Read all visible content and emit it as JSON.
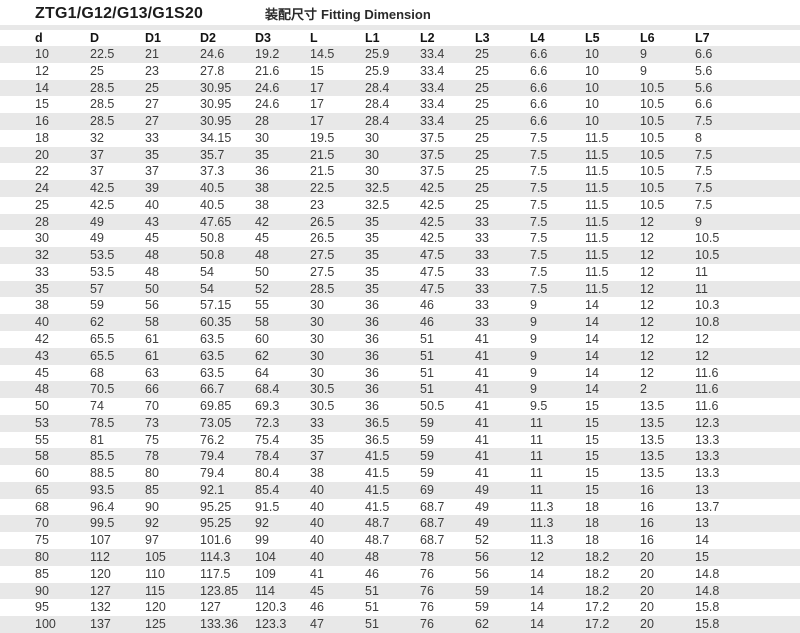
{
  "header": {
    "title": "ZTG1/G12/G13/G1S20",
    "subtitle_cn": "装配尺寸",
    "subtitle_en": "Fitting Dimension"
  },
  "colors": {
    "stripe": "#e8e8e8",
    "text": "#3d3d3d",
    "header_text": "#141414",
    "background": "#ffffff"
  },
  "table": {
    "columns": [
      "d",
      "D",
      "D1",
      "D2",
      "D3",
      "L",
      "L1",
      "L2",
      "L3",
      "L4",
      "L5",
      "L6",
      "L7"
    ],
    "rows": [
      [
        "10",
        "22.5",
        "21",
        "24.6",
        "19.2",
        "14.5",
        "25.9",
        "33.4",
        "25",
        "6.6",
        "10",
        "9",
        "6.6"
      ],
      [
        "12",
        "25",
        "23",
        "27.8",
        "21.6",
        "15",
        "25.9",
        "33.4",
        "25",
        "6.6",
        "10",
        "9",
        "5.6"
      ],
      [
        "14",
        "28.5",
        "25",
        "30.95",
        "24.6",
        "17",
        "28.4",
        "33.4",
        "25",
        "6.6",
        "10",
        "10.5",
        "5.6"
      ],
      [
        "15",
        "28.5",
        "27",
        "30.95",
        "24.6",
        "17",
        "28.4",
        "33.4",
        "25",
        "6.6",
        "10",
        "10.5",
        "6.6"
      ],
      [
        "16",
        "28.5",
        "27",
        "30.95",
        "28",
        "17",
        "28.4",
        "33.4",
        "25",
        "6.6",
        "10",
        "10.5",
        "7.5"
      ],
      [
        "18",
        "32",
        "33",
        "34.15",
        "30",
        "19.5",
        "30",
        "37.5",
        "25",
        "7.5",
        "11.5",
        "10.5",
        "8"
      ],
      [
        "20",
        "37",
        "35",
        "35.7",
        "35",
        "21.5",
        "30",
        "37.5",
        "25",
        "7.5",
        "11.5",
        "10.5",
        "7.5"
      ],
      [
        "22",
        "37",
        "37",
        "37.3",
        "36",
        "21.5",
        "30",
        "37.5",
        "25",
        "7.5",
        "11.5",
        "10.5",
        "7.5"
      ],
      [
        "24",
        "42.5",
        "39",
        "40.5",
        "38",
        "22.5",
        "32.5",
        "42.5",
        "25",
        "7.5",
        "11.5",
        "10.5",
        "7.5"
      ],
      [
        "25",
        "42.5",
        "40",
        "40.5",
        "38",
        "23",
        "32.5",
        "42.5",
        "25",
        "7.5",
        "11.5",
        "10.5",
        "7.5"
      ],
      [
        "28",
        "49",
        "43",
        "47.65",
        "42",
        "26.5",
        "35",
        "42.5",
        "33",
        "7.5",
        "11.5",
        "12",
        "9"
      ],
      [
        "30",
        "49",
        "45",
        "50.8",
        "45",
        "26.5",
        "35",
        "42.5",
        "33",
        "7.5",
        "11.5",
        "12",
        "10.5"
      ],
      [
        "32",
        "53.5",
        "48",
        "50.8",
        "48",
        "27.5",
        "35",
        "47.5",
        "33",
        "7.5",
        "11.5",
        "12",
        "10.5"
      ],
      [
        "33",
        "53.5",
        "48",
        "54",
        "50",
        "27.5",
        "35",
        "47.5",
        "33",
        "7.5",
        "11.5",
        "12",
        "11"
      ],
      [
        "35",
        "57",
        "50",
        "54",
        "52",
        "28.5",
        "35",
        "47.5",
        "33",
        "7.5",
        "11.5",
        "12",
        "11"
      ],
      [
        "38",
        "59",
        "56",
        "57.15",
        "55",
        "30",
        "36",
        "46",
        "33",
        "9",
        "14",
        "12",
        "10.3"
      ],
      [
        "40",
        "62",
        "58",
        "60.35",
        "58",
        "30",
        "36",
        "46",
        "33",
        "9",
        "14",
        "12",
        "10.8"
      ],
      [
        "42",
        "65.5",
        "61",
        "63.5",
        "60",
        "30",
        "36",
        "51",
        "41",
        "9",
        "14",
        "12",
        "12"
      ],
      [
        "43",
        "65.5",
        "61",
        "63.5",
        "62",
        "30",
        "36",
        "51",
        "41",
        "9",
        "14",
        "12",
        "12"
      ],
      [
        "45",
        "68",
        "63",
        "63.5",
        "64",
        "30",
        "36",
        "51",
        "41",
        "9",
        "14",
        "12",
        "11.6"
      ],
      [
        "48",
        "70.5",
        "66",
        "66.7",
        "68.4",
        "30.5",
        "36",
        "51",
        "41",
        "9",
        "14",
        "2",
        "11.6"
      ],
      [
        "50",
        "74",
        "70",
        "69.85",
        "69.3",
        "30.5",
        "36",
        "50.5",
        "41",
        "9.5",
        "15",
        "13.5",
        "11.6"
      ],
      [
        "53",
        "78.5",
        "73",
        "73.05",
        "72.3",
        "33",
        "36.5",
        "59",
        "41",
        "11",
        "15",
        "13.5",
        "12.3"
      ],
      [
        "55",
        "81",
        "75",
        "76.2",
        "75.4",
        "35",
        "36.5",
        "59",
        "41",
        "11",
        "15",
        "13.5",
        "13.3"
      ],
      [
        "58",
        "85.5",
        "78",
        "79.4",
        "78.4",
        "37",
        "41.5",
        "59",
        "41",
        "11",
        "15",
        "13.5",
        "13.3"
      ],
      [
        "60",
        "88.5",
        "80",
        "79.4",
        "80.4",
        "38",
        "41.5",
        "59",
        "41",
        "11",
        "15",
        "13.5",
        "13.3"
      ],
      [
        "65",
        "93.5",
        "85",
        "92.1",
        "85.4",
        "40",
        "41.5",
        "69",
        "49",
        "11",
        "15",
        "16",
        "13"
      ],
      [
        "68",
        "96.4",
        "90",
        "95.25",
        "91.5",
        "40",
        "41.5",
        "68.7",
        "49",
        "11.3",
        "18",
        "16",
        "13.7"
      ],
      [
        "70",
        "99.5",
        "92",
        "95.25",
        "92",
        "40",
        "48.7",
        "68.7",
        "49",
        "11.3",
        "18",
        "16",
        "13"
      ],
      [
        "75",
        "107",
        "97",
        "101.6",
        "99",
        "40",
        "48.7",
        "68.7",
        "52",
        "11.3",
        "18",
        "16",
        "14"
      ],
      [
        "80",
        "112",
        "105",
        "114.3",
        "104",
        "40",
        "48",
        "78",
        "56",
        "12",
        "18.2",
        "20",
        "15"
      ],
      [
        "85",
        "120",
        "110",
        "117.5",
        "109",
        "41",
        "46",
        "76",
        "56",
        "14",
        "18.2",
        "20",
        "14.8"
      ],
      [
        "90",
        "127",
        "115",
        "123.85",
        "114",
        "45",
        "51",
        "76",
        "59",
        "14",
        "18.2",
        "20",
        "14.8"
      ],
      [
        "95",
        "132",
        "120",
        "127",
        "120.3",
        "46",
        "51",
        "76",
        "59",
        "14",
        "17.2",
        "20",
        "15.8"
      ],
      [
        "100",
        "137",
        "125",
        "133.36",
        "123.3",
        "47",
        "51",
        "76",
        "62",
        "14",
        "17.2",
        "20",
        "15.8"
      ]
    ]
  }
}
